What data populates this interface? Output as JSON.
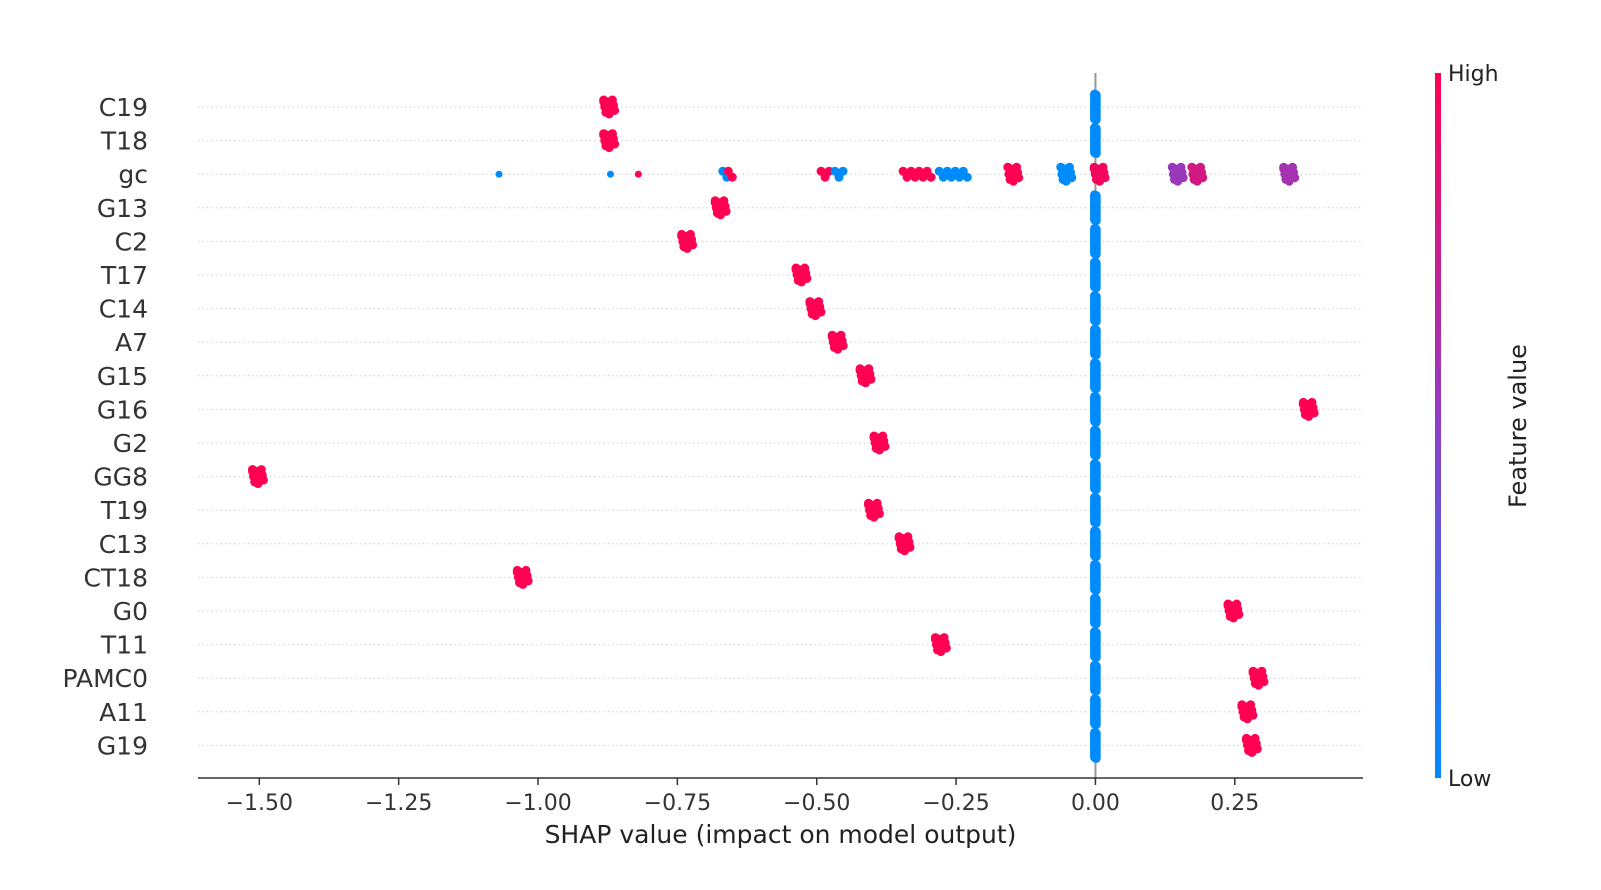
{
  "chart_data": {
    "type": "scatter",
    "subtype": "shap-beeswarm",
    "xlabel": "SHAP value (impact on model output)",
    "xlim": [
      -1.61,
      0.48
    ],
    "xticks": [
      -1.5,
      -1.25,
      -1.0,
      -0.75,
      -0.5,
      -0.25,
      0.0,
      0.25
    ],
    "xtick_labels": [
      "−1.50",
      "−1.25",
      "−1.00",
      "−0.75",
      "−0.50",
      "−0.25",
      "0.00",
      "0.25"
    ],
    "zero_line_x": 0.0,
    "grid": "dotted horizontal per feature",
    "colorbar": {
      "title": "Feature value",
      "high_label": "High",
      "low_label": "Low",
      "low_color": "#008bfb",
      "high_color": "#ff0052"
    },
    "features": [
      {
        "name": "C19",
        "points": [
          {
            "x": 0.0,
            "v": 0.0,
            "n": 60
          },
          {
            "x": -0.875,
            "v": 1.0,
            "n": 12
          }
        ]
      },
      {
        "name": "T18",
        "points": [
          {
            "x": 0.0,
            "v": 0.0,
            "n": 60
          },
          {
            "x": -0.875,
            "v": 1.0,
            "n": 12
          }
        ]
      },
      {
        "name": "gc",
        "points": [
          {
            "x": -1.07,
            "v": 0.0,
            "n": 1
          },
          {
            "x": -0.87,
            "v": 0.0,
            "n": 1
          },
          {
            "x": -0.82,
            "v": 1.0,
            "n": 1
          },
          {
            "x": -0.665,
            "v": 0.0,
            "n": 2
          },
          {
            "x": -0.655,
            "v": 1.0,
            "n": 2
          },
          {
            "x": -0.485,
            "v": 1.0,
            "n": 3
          },
          {
            "x": -0.46,
            "v": 0.0,
            "n": 3
          },
          {
            "x": -0.32,
            "v": 1.0,
            "n": 8
          },
          {
            "x": -0.255,
            "v": 0.0,
            "n": 8
          },
          {
            "x": -0.15,
            "v": 1.0,
            "n": 10
          },
          {
            "x": -0.055,
            "v": 0.0,
            "n": 10
          },
          {
            "x": 0.005,
            "v": 0.95,
            "n": 12
          },
          {
            "x": 0.145,
            "v": 0.55,
            "n": 10
          },
          {
            "x": 0.18,
            "v": 0.8,
            "n": 10
          },
          {
            "x": 0.345,
            "v": 0.6,
            "n": 12
          }
        ]
      },
      {
        "name": "G13",
        "points": [
          {
            "x": 0.0,
            "v": 0.0,
            "n": 60
          },
          {
            "x": -0.675,
            "v": 1.0,
            "n": 12
          }
        ]
      },
      {
        "name": "C2",
        "points": [
          {
            "x": 0.0,
            "v": 0.0,
            "n": 60
          },
          {
            "x": -0.735,
            "v": 1.0,
            "n": 12
          }
        ]
      },
      {
        "name": "T17",
        "points": [
          {
            "x": 0.0,
            "v": 0.0,
            "n": 60
          },
          {
            "x": -0.53,
            "v": 1.0,
            "n": 12
          }
        ]
      },
      {
        "name": "C14",
        "points": [
          {
            "x": 0.0,
            "v": 0.0,
            "n": 60
          },
          {
            "x": -0.505,
            "v": 1.0,
            "n": 12
          }
        ]
      },
      {
        "name": "A7",
        "points": [
          {
            "x": 0.0,
            "v": 0.0,
            "n": 60
          },
          {
            "x": -0.465,
            "v": 1.0,
            "n": 12
          }
        ]
      },
      {
        "name": "G15",
        "points": [
          {
            "x": 0.0,
            "v": 0.0,
            "n": 60
          },
          {
            "x": -0.415,
            "v": 1.0,
            "n": 12
          }
        ]
      },
      {
        "name": "G16",
        "points": [
          {
            "x": 0.0,
            "v": 0.0,
            "n": 60
          },
          {
            "x": 0.38,
            "v": 1.0,
            "n": 12
          }
        ]
      },
      {
        "name": "G2",
        "points": [
          {
            "x": 0.0,
            "v": 0.0,
            "n": 60
          },
          {
            "x": -0.39,
            "v": 1.0,
            "n": 12
          }
        ]
      },
      {
        "name": "GG8",
        "points": [
          {
            "x": 0.0,
            "v": 0.0,
            "n": 60
          },
          {
            "x": -1.505,
            "v": 1.0,
            "n": 12
          }
        ]
      },
      {
        "name": "T19",
        "points": [
          {
            "x": 0.0,
            "v": 0.0,
            "n": 60
          },
          {
            "x": -0.4,
            "v": 1.0,
            "n": 12
          }
        ]
      },
      {
        "name": "C13",
        "points": [
          {
            "x": 0.0,
            "v": 0.0,
            "n": 60
          },
          {
            "x": -0.345,
            "v": 1.0,
            "n": 12
          }
        ]
      },
      {
        "name": "CT18",
        "points": [
          {
            "x": 0.0,
            "v": 0.0,
            "n": 60
          },
          {
            "x": -1.03,
            "v": 1.0,
            "n": 12
          }
        ]
      },
      {
        "name": "G0",
        "points": [
          {
            "x": 0.0,
            "v": 0.0,
            "n": 60
          },
          {
            "x": 0.245,
            "v": 1.0,
            "n": 12
          }
        ]
      },
      {
        "name": "T11",
        "points": [
          {
            "x": 0.0,
            "v": 0.0,
            "n": 60
          },
          {
            "x": -0.28,
            "v": 1.0,
            "n": 12
          }
        ]
      },
      {
        "name": "PAMC0",
        "points": [
          {
            "x": 0.0,
            "v": 0.0,
            "n": 60
          },
          {
            "x": 0.29,
            "v": 1.0,
            "n": 12
          }
        ]
      },
      {
        "name": "A11",
        "points": [
          {
            "x": 0.0,
            "v": 0.0,
            "n": 60
          },
          {
            "x": 0.27,
            "v": 1.0,
            "n": 12
          }
        ]
      },
      {
        "name": "G19",
        "points": [
          {
            "x": 0.0,
            "v": 0.0,
            "n": 60
          },
          {
            "x": 0.278,
            "v": 1.0,
            "n": 12
          }
        ]
      }
    ]
  }
}
